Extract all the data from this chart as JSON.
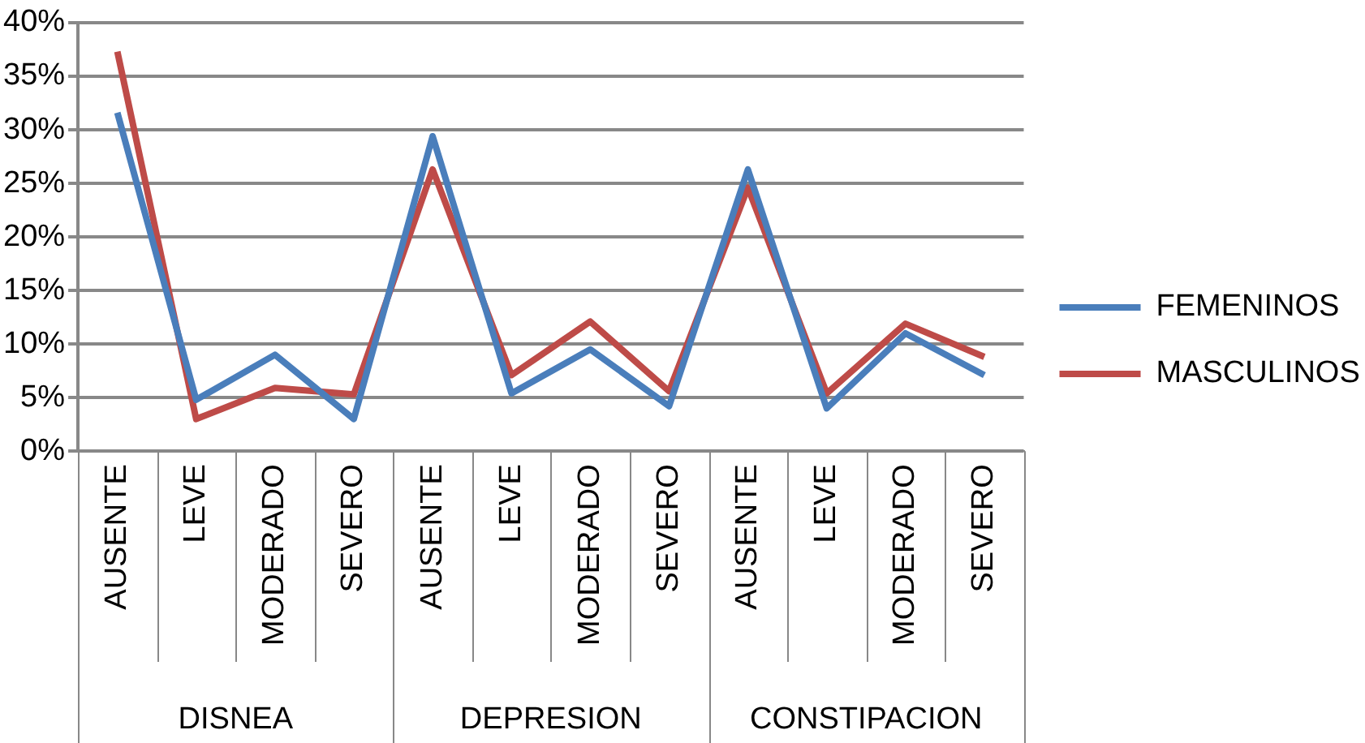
{
  "chart_data": {
    "type": "line",
    "categories": [
      "AUSENTE",
      "LEVE",
      "MODERADO",
      "SEVERO",
      "AUSENTE",
      "LEVE",
      "MODERADO",
      "SEVERO",
      "AUSENTE",
      "LEVE",
      "MODERADO",
      "SEVERO"
    ],
    "series": [
      {
        "name": "FEMENINOS",
        "color": "#4a7ebb",
        "values": [
          31.6,
          4.8,
          9.0,
          3.0,
          29.4,
          5.4,
          9.5,
          4.2,
          26.3,
          4.0,
          11.0,
          7.1
        ]
      },
      {
        "name": "MASCULINOS",
        "color": "#be4b48",
        "values": [
          37.3,
          3.0,
          5.9,
          5.3,
          26.3,
          7.1,
          12.1,
          5.6,
          24.6,
          5.4,
          11.9,
          8.8
        ]
      }
    ],
    "annotations": [
      "DISNEA",
      "DEPRESION",
      "CONSTIPACION"
    ],
    "ylim": [
      0,
      40
    ],
    "yticks": [
      {
        "value": 0,
        "label": "0%"
      },
      {
        "value": 5,
        "label": "5%"
      },
      {
        "value": 10,
        "label": "10%"
      },
      {
        "value": 15,
        "label": "15%"
      },
      {
        "value": 20,
        "label": "20%"
      },
      {
        "value": 25,
        "label": "25%"
      },
      {
        "value": 30,
        "label": "30%"
      },
      {
        "value": 35,
        "label": "35%"
      },
      {
        "value": 40,
        "label": "40%"
      }
    ],
    "grid": "y",
    "legend": "right",
    "marker": "none",
    "line_style": "solid"
  }
}
